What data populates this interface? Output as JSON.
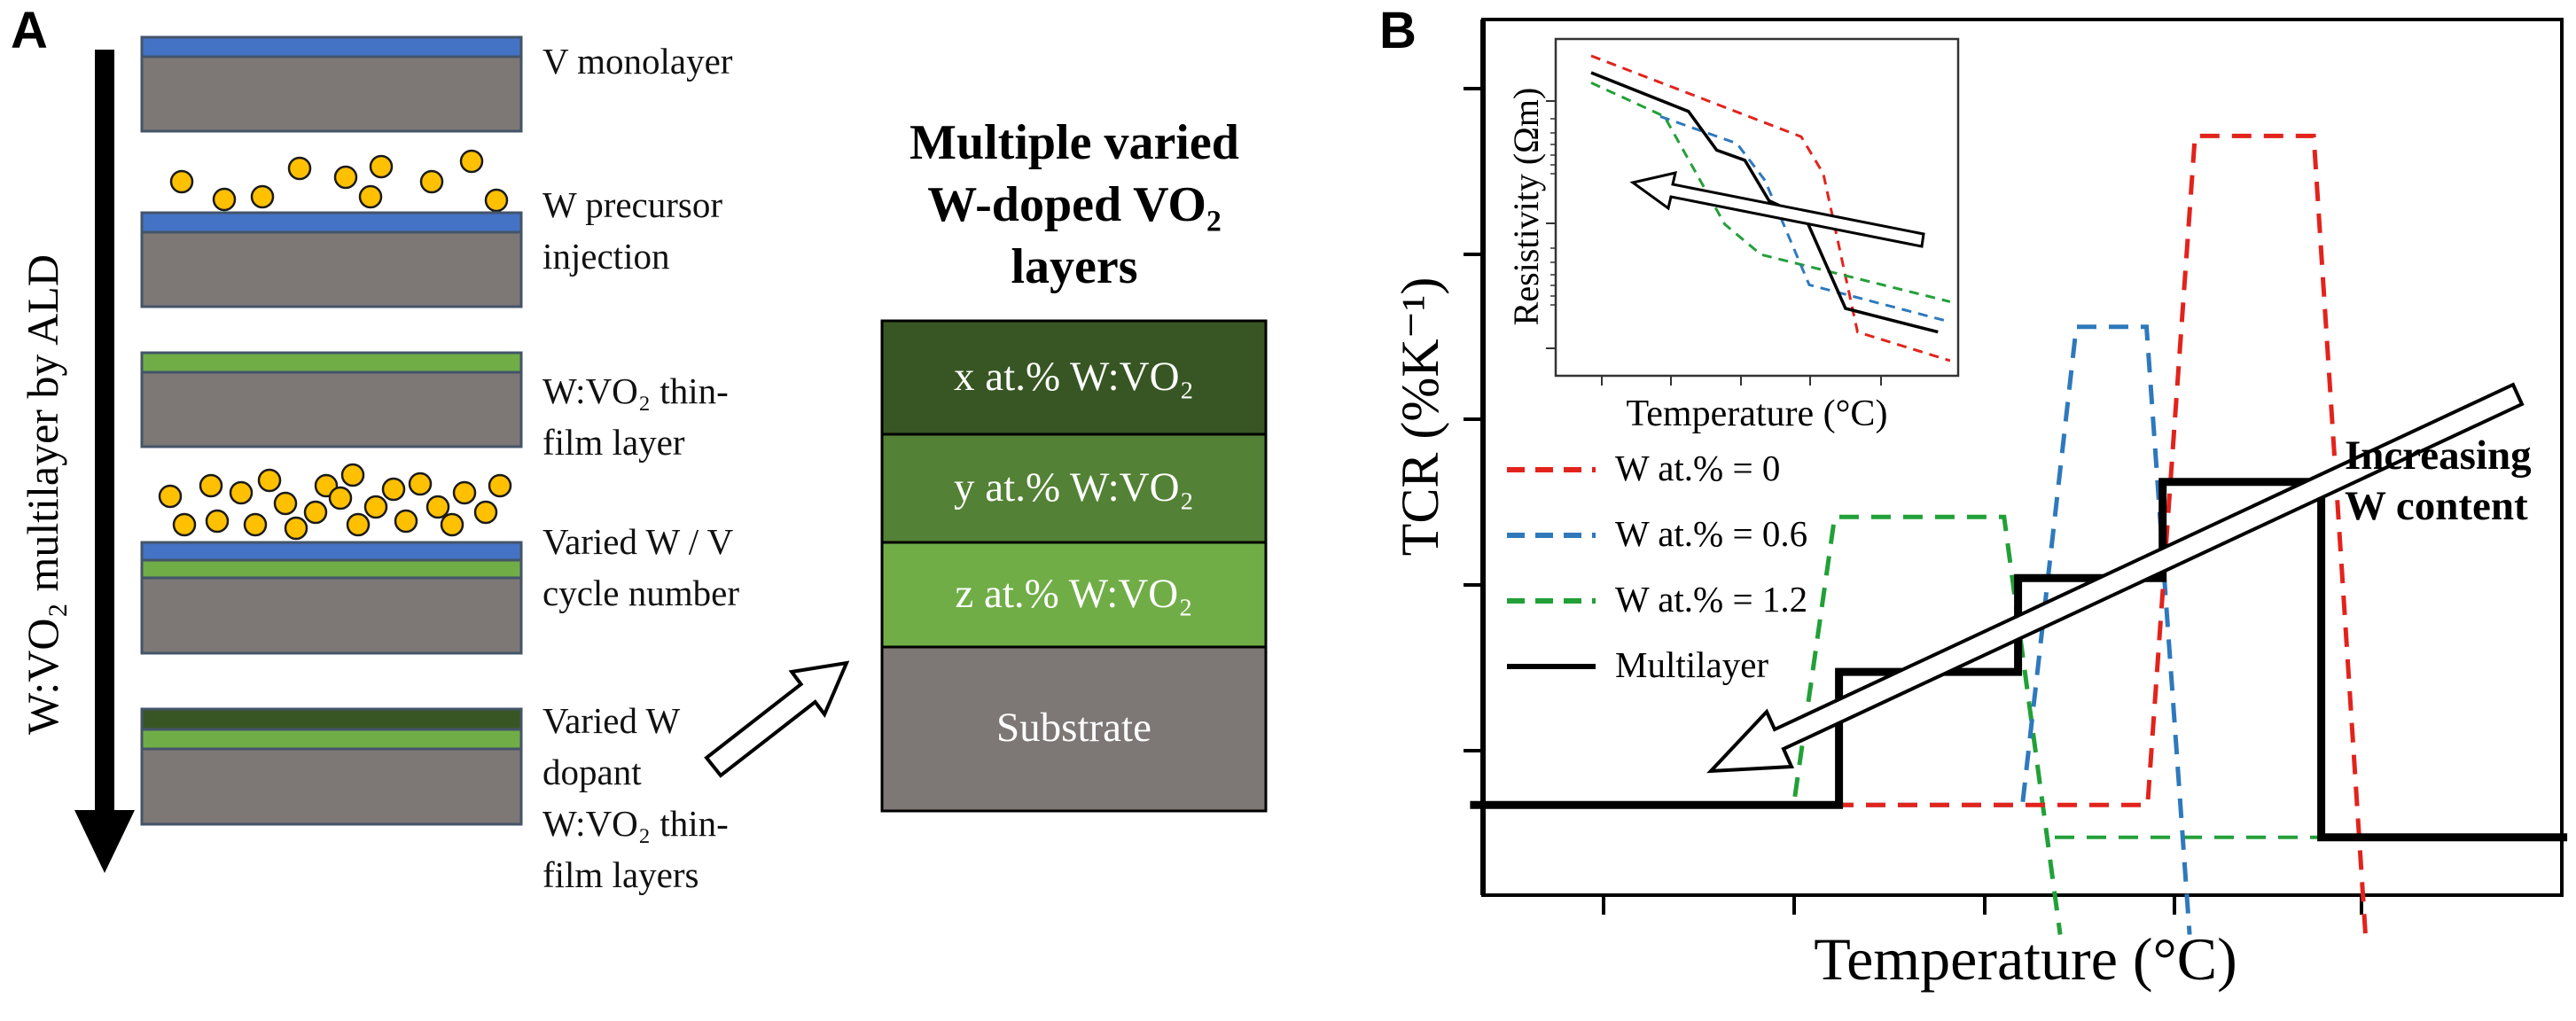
{
  "panelA": {
    "label": "A",
    "side_label": "W:VO₂ multilayer by ALD",
    "steps": [
      {
        "lines": [
          "V monolayer"
        ]
      },
      {
        "lines": [
          "W precursor",
          "injection"
        ]
      },
      {
        "lines": [
          "W:VO₂ thin-",
          "film layer"
        ]
      },
      {
        "lines": [
          "Varied W / V",
          "cycle number"
        ]
      },
      {
        "lines": [
          "Varied W",
          "dopant",
          "W:VO₂ thin-",
          "film layers"
        ]
      }
    ],
    "stack_title_lines": [
      "Multiple varied",
      "W-doped VO₂",
      "layers"
    ],
    "stack_layers": [
      {
        "label": "x at.% W:VO₂",
        "color": "#375623"
      },
      {
        "label": "y at.% W:VO₂",
        "color": "#538135"
      },
      {
        "label": "z at.% W:VO₂",
        "color": "#70AD47"
      },
      {
        "label": "Substrate",
        "color": "#7D7775"
      }
    ],
    "colors": {
      "v_layer_blue": "#4472C4",
      "wvo2_green": "#70AD47",
      "dark_green": "#375623",
      "substrate_gray": "#7D7775",
      "particle_yellow": "#FFC000"
    }
  },
  "panelB": {
    "label": "B",
    "ylabel": "TCR (%K⁻¹)",
    "xlabel": "Temperature (°C)",
    "annotation_lines": [
      "Increasing",
      "W content"
    ],
    "inset": {
      "ylabel": "Resistivity (Ωm)",
      "xlabel": "Temperature (°C)"
    }
  },
  "chart_data": [
    {
      "id": "main-tcr-plot",
      "type": "line",
      "title": "",
      "xlabel": "Temperature (°C)",
      "ylabel": "TCR (%K⁻¹)",
      "x_ticks_labeled": false,
      "y_ticks_labeled": false,
      "grid": false,
      "legend_position": "upper-left",
      "coords": "normalized-fraction-of-plot-area",
      "series": [
        {
          "name": "W at.% = 0",
          "color": "#E2231C",
          "line": "dashed",
          "points": [
            [
              0.0,
              0.103
            ],
            [
              0.616,
              0.103
            ],
            [
              0.66,
              0.867
            ],
            [
              0.77,
              0.867
            ],
            [
              0.818,
              -0.045
            ]
          ]
        },
        {
          "name": "W at.% = 0.6",
          "color": "#2E79BC",
          "line": "dashed",
          "points": [
            [
              0.0,
              0.103
            ],
            [
              0.5,
              0.103
            ],
            [
              0.55,
              0.649
            ],
            [
              0.615,
              0.649
            ],
            [
              0.655,
              -0.045
            ]
          ]
        },
        {
          "name": "W at.% = 1.2",
          "color": "#22A038",
          "line": "dashed",
          "points": [
            [
              0.0,
              0.103
            ],
            [
              0.288,
              0.103
            ],
            [
              0.326,
              0.432
            ],
            [
              0.483,
              0.432
            ],
            [
              0.535,
              -0.045
            ]
          ],
          "tail": [
            [
              0.53,
              0.066
            ],
            [
              0.782,
              0.066
            ]
          ]
        },
        {
          "name": "Multilayer",
          "color": "#000000",
          "line": "solid",
          "points": [
            [
              -0.012,
              0.103
            ],
            [
              0.33,
              0.103
            ],
            [
              0.33,
              0.255
            ],
            [
              0.496,
              0.255
            ],
            [
              0.496,
              0.362
            ],
            [
              0.63,
              0.362
            ],
            [
              0.63,
              0.472
            ],
            [
              0.777,
              0.472
            ],
            [
              0.777,
              0.066
            ],
            [
              1.005,
              0.066
            ]
          ]
        }
      ]
    },
    {
      "id": "inset-resistivity-plot",
      "type": "line",
      "title": "",
      "xlabel": "Temperature (°C)",
      "ylabel": "Resistivity (Ωm)",
      "x_ticks_labeled": false,
      "y_ticks_labeled": false,
      "grid": false,
      "coords": "normalized-fraction-of-plot-area",
      "series": [
        {
          "name": "W at.% = 0",
          "color": "#E2231C",
          "line": "dashed",
          "points": [
            [
              0.088,
              0.95
            ],
            [
              0.61,
              0.71
            ],
            [
              0.665,
              0.6
            ],
            [
              0.75,
              0.13
            ],
            [
              0.98,
              0.045
            ]
          ]
        },
        {
          "name": "W at.% = 0.6",
          "color": "#2E79BC",
          "line": "dashed",
          "points": [
            [
              0.26,
              0.77
            ],
            [
              0.45,
              0.69
            ],
            [
              0.52,
              0.58
            ],
            [
              0.63,
              0.27
            ],
            [
              0.98,
              0.16
            ]
          ]
        },
        {
          "name": "W at.% = 1.2",
          "color": "#22A038",
          "line": "dashed",
          "points": [
            [
              0.088,
              0.87
            ],
            [
              0.27,
              0.77
            ],
            [
              0.42,
              0.45
            ],
            [
              0.51,
              0.36
            ],
            [
              0.98,
              0.22
            ]
          ]
        },
        {
          "name": "Multilayer",
          "color": "#000000",
          "line": "solid",
          "points": [
            [
              0.088,
              0.9
            ],
            [
              0.33,
              0.785
            ],
            [
              0.4,
              0.67
            ],
            [
              0.47,
              0.64
            ],
            [
              0.53,
              0.52
            ],
            [
              0.62,
              0.47
            ],
            [
              0.72,
              0.2
            ],
            [
              0.95,
              0.13
            ]
          ]
        }
      ]
    }
  ]
}
